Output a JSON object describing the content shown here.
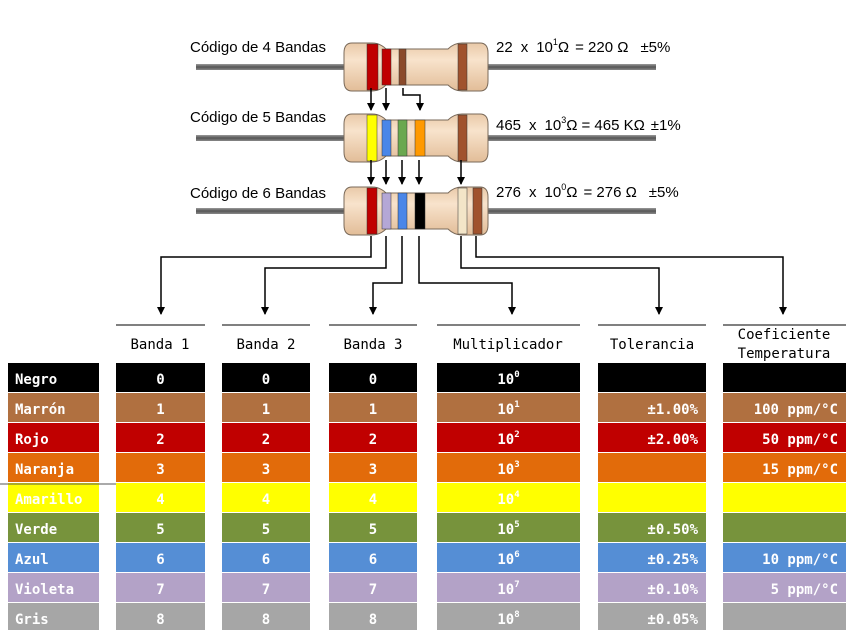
{
  "resistors": [
    {
      "label": "Código de 4 Bandas",
      "formula": {
        "base": "22",
        "x": "x",
        "ten": "10",
        "exp": "1",
        "unit": "Ω",
        "eq": "= 220 Ω",
        "tol": "±5%"
      },
      "bands": [
        "#c00000",
        "#c00000",
        "#8b4a2b",
        "#a0522d"
      ]
    },
    {
      "label": "Código de 5 Bandas",
      "formula": {
        "base": "465",
        "x": "x",
        "ten": "10",
        "exp": "3",
        "unit": "Ω",
        "eq": "= 465 KΩ",
        "tol": "±1%"
      },
      "bands": [
        "#ffff00",
        "#4a86e8",
        "#6aa84f",
        "#ff9900",
        "#a0522d"
      ]
    },
    {
      "label": "Código de 6 Bandas",
      "formula": {
        "base": "276",
        "x": "x",
        "ten": "10",
        "exp": "0",
        "unit": "Ω",
        "eq": "= 276 Ω",
        "tol": "±5%"
      },
      "bands": [
        "#c00000",
        "#b4a7d6",
        "#4a86e8",
        "#000000",
        "#f3e5c8",
        "#a0522d"
      ]
    }
  ],
  "table": {
    "headers": [
      "Banda 1",
      "Banda 2",
      "Banda 3",
      "Multiplicador",
      "Tolerancia",
      "Coeficiente",
      "Temperatura"
    ],
    "ten": "10",
    "rows": [
      {
        "name": "Negro",
        "color": "#000000",
        "text": "#ffffff",
        "digit": "0",
        "exp": "0",
        "tol": "",
        "temp": ""
      },
      {
        "name": "Marrón",
        "color": "#b07040",
        "text": "#ffffff",
        "digit": "1",
        "exp": "1",
        "tol": "±1.00%",
        "temp": "100 ppm/°C"
      },
      {
        "name": "Rojo",
        "color": "#c00000",
        "text": "#ffffff",
        "digit": "2",
        "exp": "2",
        "tol": "±2.00%",
        "temp": "50 ppm/°C"
      },
      {
        "name": "Naranja",
        "color": "#e26b0a",
        "text": "#ffffff",
        "digit": "3",
        "exp": "3",
        "tol": "",
        "temp": "15 ppm/°C"
      },
      {
        "name": "Amarillo",
        "color": "#ffff00",
        "text": "#ffffff",
        "digit": "4",
        "exp": "4",
        "tol": "",
        "temp": ""
      },
      {
        "name": "Verde",
        "color": "#77933c",
        "text": "#ffffff",
        "digit": "5",
        "exp": "5",
        "tol": "±0.50%",
        "temp": ""
      },
      {
        "name": "Azul",
        "color": "#558ed5",
        "text": "#ffffff",
        "digit": "6",
        "exp": "6",
        "tol": "±0.25%",
        "temp": "10 ppm/°C"
      },
      {
        "name": "Violeta",
        "color": "#b3a2c7",
        "text": "#ffffff",
        "digit": "7",
        "exp": "7",
        "tol": "±0.10%",
        "temp": "5 ppm/°C"
      },
      {
        "name": "Gris",
        "color": "#a6a6a6",
        "text": "#ffffff",
        "digit": "8",
        "exp": "8",
        "tol": "±0.05%",
        "temp": ""
      }
    ]
  }
}
